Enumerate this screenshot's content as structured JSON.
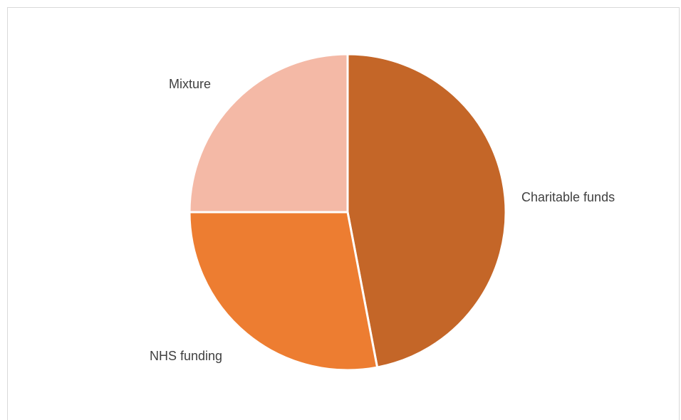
{
  "chart_data": {
    "type": "pie",
    "title": "",
    "legend": "none",
    "start_angle_deg": 0,
    "direction": "clockwise",
    "slices": [
      {
        "label": "Charitable funds",
        "value": 47,
        "color": "#C46628"
      },
      {
        "label": "NHS funding",
        "value": 28,
        "color": "#ED7D31"
      },
      {
        "label": "Mixture",
        "value": 25,
        "color": "#F4B9A6"
      }
    ]
  }
}
